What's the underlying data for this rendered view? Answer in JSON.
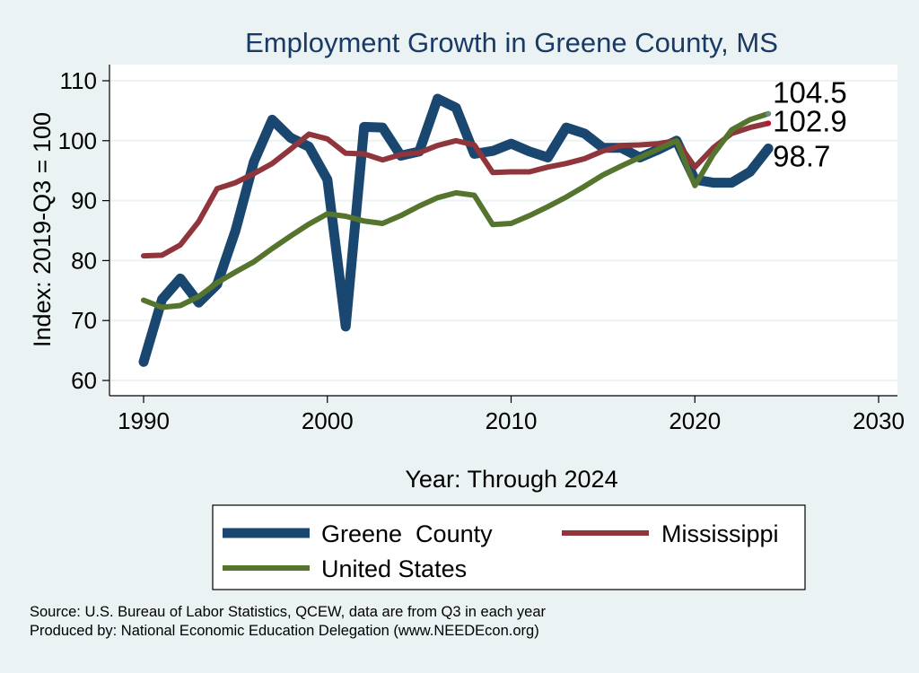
{
  "chart_data": {
    "type": "line",
    "title": "Employment Growth in Greene County, MS",
    "xlabel": "Year: Through 2024",
    "ylabel": "Index: 2019-Q3 = 100",
    "xlim": [
      1990,
      2030
    ],
    "ylim": [
      60,
      110
    ],
    "xticks": [
      1990,
      2000,
      2010,
      2020,
      2030
    ],
    "yticks": [
      60,
      70,
      80,
      90,
      100,
      110
    ],
    "grid": true,
    "legend_position": "bottom",
    "x": [
      1990,
      1991,
      1992,
      1993,
      1994,
      1995,
      1996,
      1997,
      1998,
      1999,
      2000,
      2001,
      2002,
      2003,
      2004,
      2005,
      2006,
      2007,
      2008,
      2009,
      2010,
      2011,
      2012,
      2013,
      2014,
      2015,
      2016,
      2017,
      2018,
      2019,
      2020,
      2021,
      2022,
      2023,
      2024
    ],
    "series": [
      {
        "name": "Greene  County",
        "color": "#1a476f",
        "end_label": "98.7",
        "values": [
          63.1,
          73.5,
          77,
          73,
          76,
          85,
          96.5,
          103.5,
          100.5,
          99,
          93.5,
          69,
          102.3,
          102.2,
          97.5,
          98.2,
          107,
          105.5,
          97.8,
          98.3,
          99.5,
          98.2,
          97.2,
          102.2,
          101.2,
          98.8,
          98.8,
          97.2,
          98.5,
          100,
          93.5,
          93,
          93,
          94.8,
          98.7
        ]
      },
      {
        "name": "Mississippi",
        "color": "#90353b",
        "end_label": "102.9",
        "values": [
          80.8,
          80.9,
          82.6,
          86.5,
          92,
          93,
          94.5,
          96.2,
          98.6,
          101.1,
          100.3,
          97.9,
          97.8,
          96.8,
          97.7,
          98,
          99.2,
          100,
          99.3,
          94.7,
          94.8,
          94.8,
          95.6,
          96.2,
          97,
          98.3,
          99.2,
          99.3,
          99.5,
          100,
          95.6,
          98.8,
          101.2,
          102.2,
          102.9
        ]
      },
      {
        "name": "United States",
        "color": "#55752f",
        "end_label": "104.5",
        "values": [
          73.4,
          72.2,
          72.5,
          74,
          76.3,
          78.1,
          79.8,
          82,
          84.1,
          86.1,
          87.8,
          87.4,
          86.6,
          86.2,
          87.5,
          89.1,
          90.5,
          91.3,
          90.9,
          86,
          86.2,
          87.5,
          89,
          90.6,
          92.4,
          94.3,
          95.8,
          97.2,
          98.6,
          100,
          92.5,
          97.7,
          101.8,
          103.5,
          104.5
        ]
      }
    ]
  },
  "notes": {
    "source": "Source: U.S. Bureau of Labor Statistics, QCEW, data are from Q3 in each year",
    "produced": "Produced by: National Economic Education Delegation (www.NEEDEcon.org)"
  }
}
